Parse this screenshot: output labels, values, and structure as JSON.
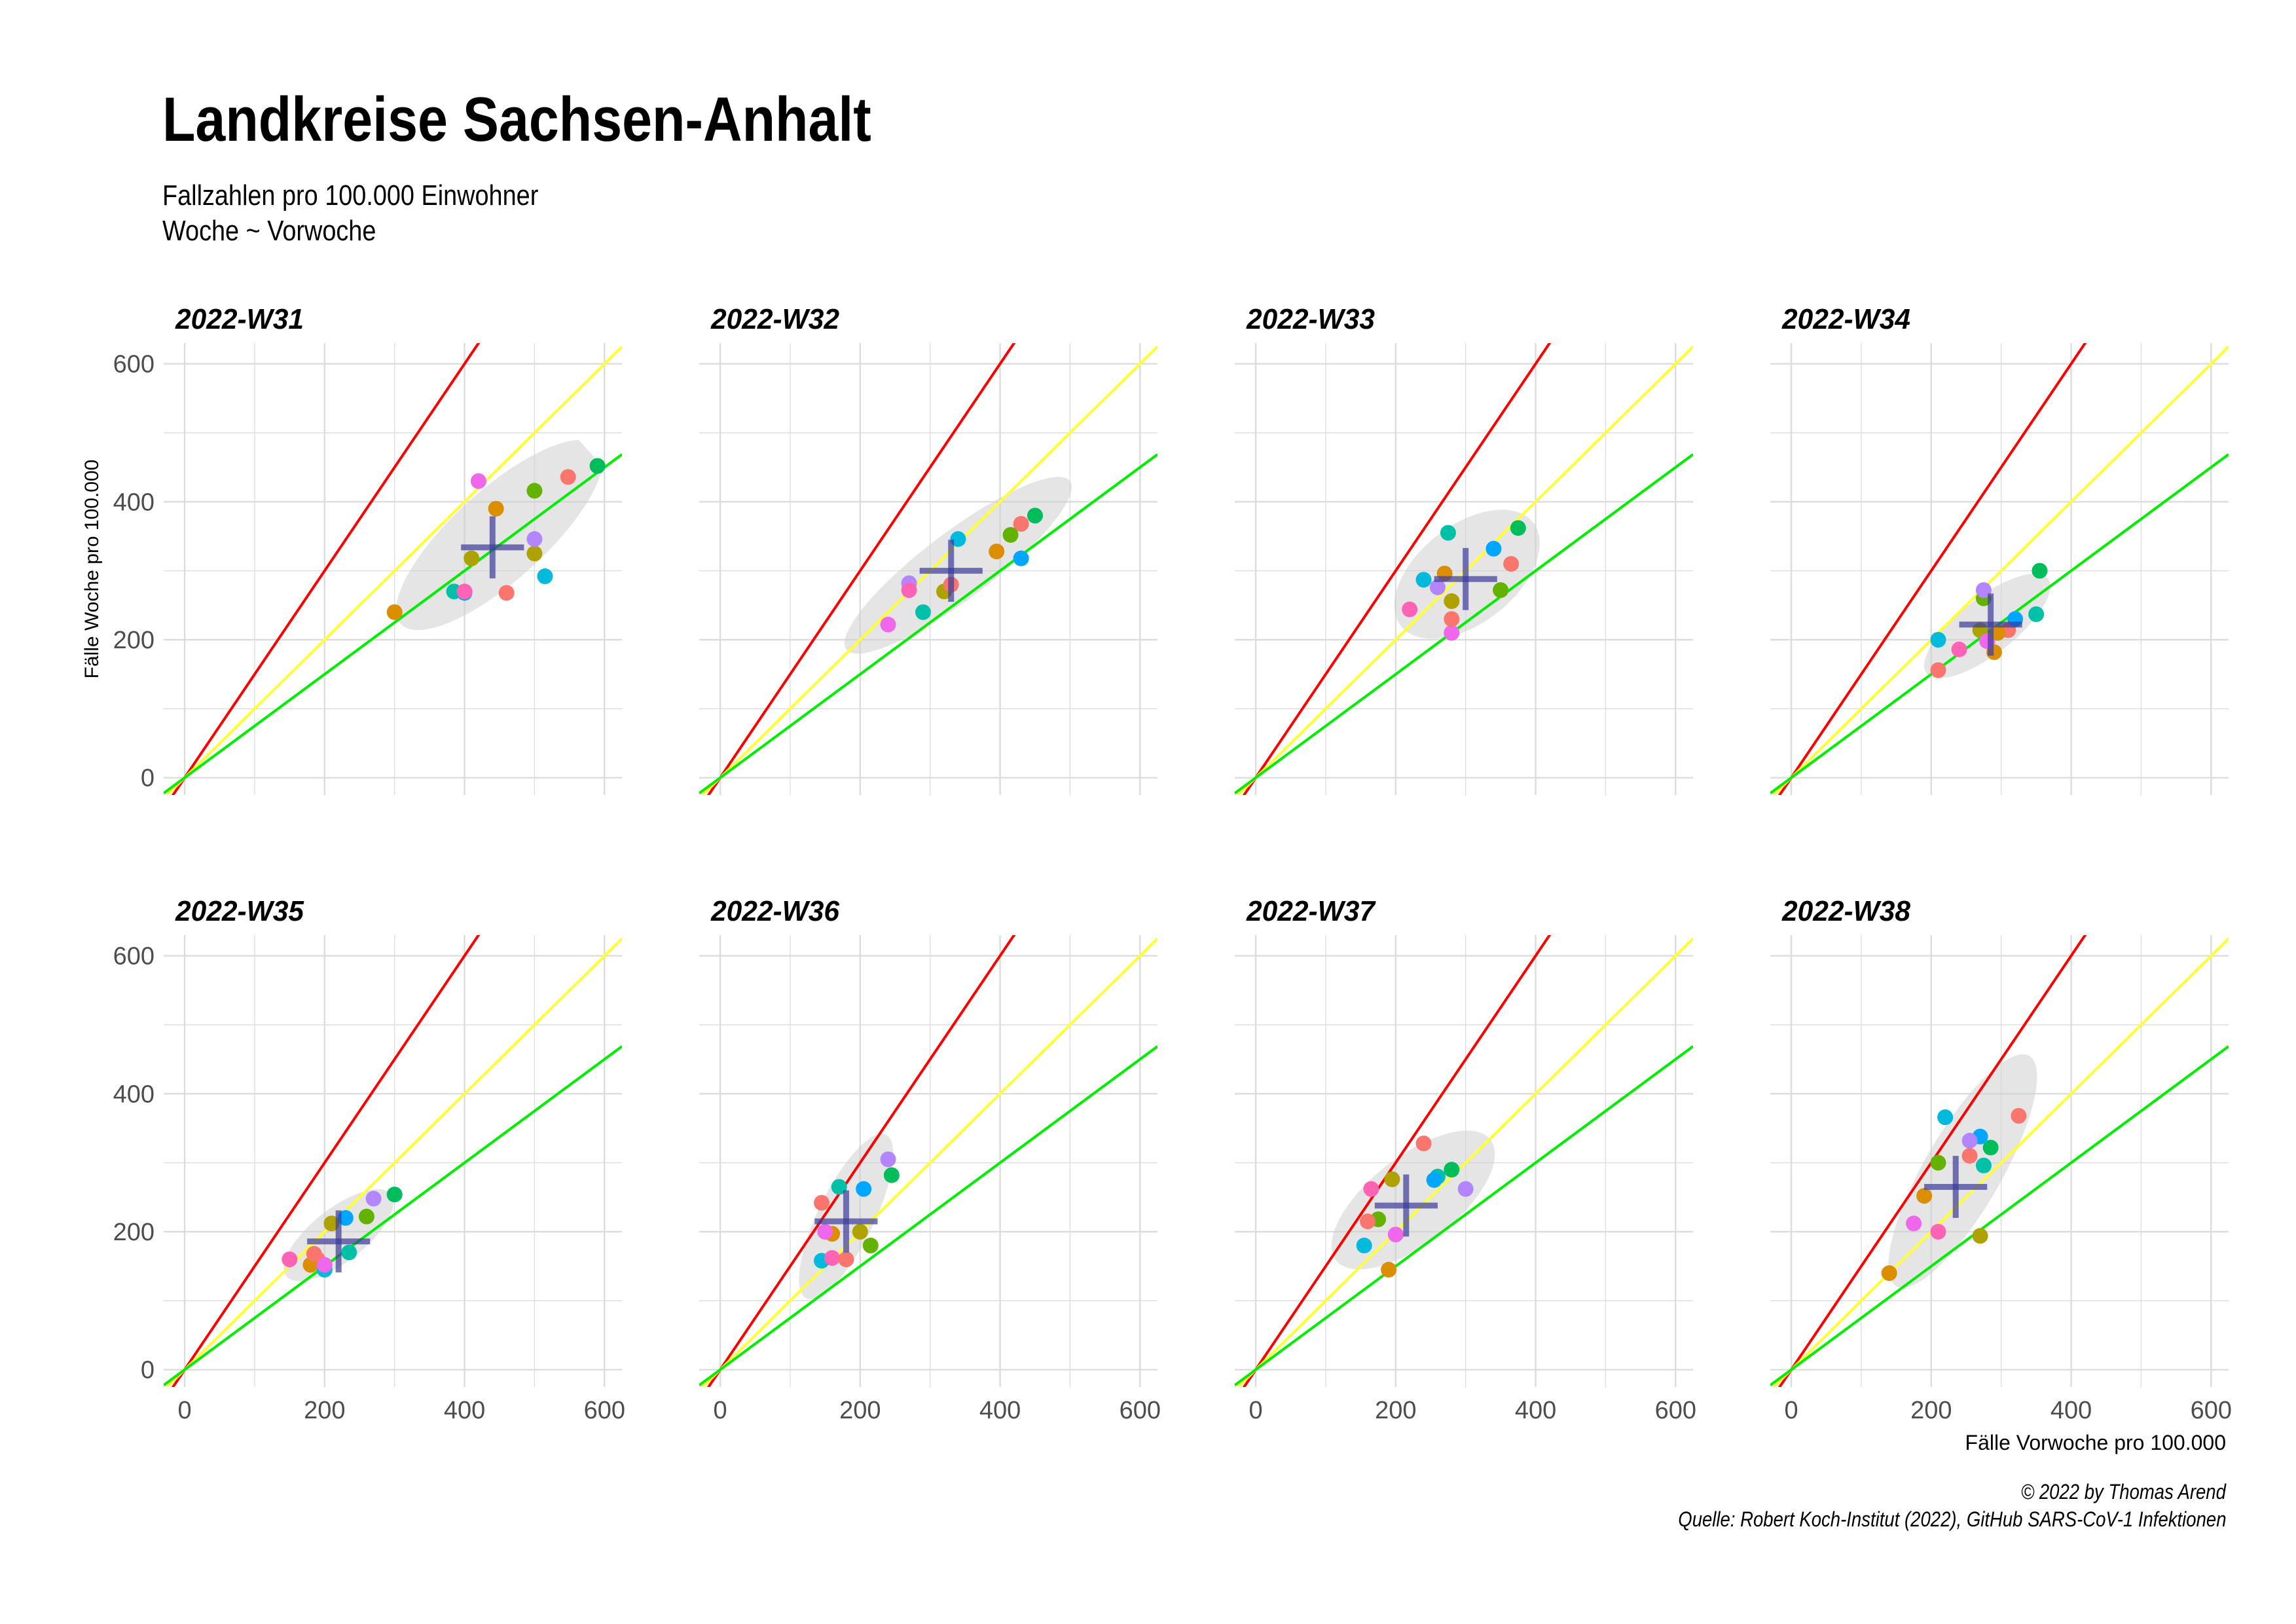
{
  "title": "Landkreise Sachsen-Anhalt",
  "subtitle_line1": "Fallzahlen pro 100.000 Einwohner",
  "subtitle_line2": "Woche ~ Vorwoche",
  "caption_line1": "© 2022 by Thomas Arend",
  "caption_line2": "Quelle: Robert Koch-Institut (2022), GitHub SARS-CoV-1 Infektionen",
  "colors": {
    "line_red": "#ff0000",
    "line_yellow": "#ffff33",
    "line_green": "#00ee00",
    "cross": "#3a3a9a",
    "ellipse": "#d0d0d0",
    "grid": "#dcdcdc",
    "points": [
      "#f8766d",
      "#db8e00",
      "#aea200",
      "#64b200",
      "#00bd5c",
      "#00c1a7",
      "#00bade",
      "#00a6ff",
      "#b385ff",
      "#ef67eb",
      "#ff63b6"
    ]
  },
  "chart_data": {
    "type": "scatter",
    "xlabel": "Fälle Vorwoche pro 100.000",
    "ylabel": "Fälle Woche pro 100.000",
    "xlim": [
      -30,
      625
    ],
    "ylim": [
      -25,
      630
    ],
    "xticks": [
      0,
      200,
      400,
      600
    ],
    "yticks": [
      0,
      200,
      400,
      600
    ],
    "tick_labels_x": [
      "0",
      "200",
      "400",
      "600"
    ],
    "tick_labels_y": [
      "0",
      "200",
      "400",
      "600"
    ],
    "reference_slopes": {
      "red": 1.5,
      "yellow": 1.0,
      "green": 0.75
    },
    "facets": [
      {
        "label": "2022-W31",
        "points": [
          [
            548,
            436
          ],
          [
            445,
            390
          ],
          [
            500,
            325
          ],
          [
            500,
            416
          ],
          [
            590,
            452
          ],
          [
            385,
            270
          ],
          [
            515,
            292
          ],
          [
            400,
            268
          ],
          [
            500,
            346
          ],
          [
            420,
            430
          ],
          [
            400,
            270
          ],
          [
            460,
            268
          ],
          [
            300,
            240
          ],
          [
            410,
            318
          ]
        ],
        "mean": [
          440,
          334
        ],
        "ellipse": {
          "cx": 450,
          "cy": 352,
          "rx": 190,
          "ry": 65,
          "angle": 42
        }
      },
      {
        "label": "2022-W32",
        "points": [
          [
            430,
            368
          ],
          [
            395,
            328
          ],
          [
            320,
            270
          ],
          [
            415,
            352
          ],
          [
            450,
            380
          ],
          [
            290,
            240
          ],
          [
            340,
            346
          ],
          [
            430,
            318
          ],
          [
            270,
            282
          ],
          [
            240,
            222
          ],
          [
            270,
            272
          ],
          [
            330,
            280
          ]
        ],
        "mean": [
          330,
          300
        ],
        "ellipse": {
          "cx": 340,
          "cy": 308,
          "rx": 200,
          "ry": 48,
          "angle": 37
        }
      },
      {
        "label": "2022-W33",
        "points": [
          [
            365,
            310
          ],
          [
            270,
            296
          ],
          [
            280,
            256
          ],
          [
            350,
            272
          ],
          [
            375,
            362
          ],
          [
            275,
            355
          ],
          [
            240,
            287
          ],
          [
            340,
            332
          ],
          [
            260,
            276
          ],
          [
            280,
            210
          ],
          [
            220,
            244
          ],
          [
            280,
            230
          ]
        ],
        "mean": [
          300,
          288
        ],
        "ellipse": {
          "cx": 302,
          "cy": 295,
          "rx": 120,
          "ry": 70,
          "angle": 38
        }
      },
      {
        "label": "2022-W34",
        "points": [
          [
            310,
            214
          ],
          [
            290,
            182
          ],
          [
            270,
            214
          ],
          [
            275,
            260
          ],
          [
            355,
            300
          ],
          [
            350,
            237
          ],
          [
            210,
            200
          ],
          [
            320,
            230
          ],
          [
            275,
            272
          ],
          [
            280,
            198
          ],
          [
            240,
            186
          ],
          [
            210,
            156
          ],
          [
            295,
            210
          ]
        ],
        "mean": [
          285,
          222
        ],
        "ellipse": {
          "cx": 280,
          "cy": 220,
          "rx": 110,
          "ry": 40,
          "angle": 38
        }
      },
      {
        "label": "2022-W35",
        "points": [
          [
            190,
            160
          ],
          [
            180,
            152
          ],
          [
            210,
            212
          ],
          [
            260,
            222
          ],
          [
            300,
            254
          ],
          [
            235,
            170
          ],
          [
            200,
            145
          ],
          [
            230,
            220
          ],
          [
            270,
            248
          ],
          [
            200,
            152
          ],
          [
            150,
            160
          ],
          [
            185,
            168
          ]
        ],
        "mean": [
          220,
          186
        ],
        "ellipse": {
          "cx": 220,
          "cy": 195,
          "rx": 95,
          "ry": 38,
          "angle": 38
        }
      },
      {
        "label": "2022-W36",
        "points": [
          [
            145,
            242
          ],
          [
            160,
            197
          ],
          [
            200,
            200
          ],
          [
            215,
            180
          ],
          [
            245,
            282
          ],
          [
            170,
            265
          ],
          [
            145,
            158
          ],
          [
            205,
            262
          ],
          [
            240,
            305
          ],
          [
            150,
            200
          ],
          [
            160,
            162
          ],
          [
            180,
            160
          ]
        ],
        "mean": [
          180,
          215
        ],
        "ellipse": {
          "cx": 180,
          "cy": 222,
          "rx": 130,
          "ry": 40,
          "angle": 64
        }
      },
      {
        "label": "2022-W37",
        "points": [
          [
            240,
            328
          ],
          [
            190,
            145
          ],
          [
            195,
            276
          ],
          [
            175,
            218
          ],
          [
            280,
            290
          ],
          [
            260,
            280
          ],
          [
            155,
            180
          ],
          [
            255,
            275
          ],
          [
            300,
            262
          ],
          [
            200,
            196
          ],
          [
            165,
            262
          ],
          [
            160,
            215
          ]
        ],
        "mean": [
          215,
          238
        ],
        "ellipse": {
          "cx": 225,
          "cy": 246,
          "rx": 140,
          "ry": 62,
          "angle": 38
        }
      },
      {
        "label": "2022-W38",
        "points": [
          [
            325,
            368
          ],
          [
            140,
            140
          ],
          [
            270,
            194
          ],
          [
            210,
            300
          ],
          [
            285,
            322
          ],
          [
            275,
            296
          ],
          [
            220,
            366
          ],
          [
            270,
            338
          ],
          [
            255,
            332
          ],
          [
            175,
            212
          ],
          [
            210,
            200
          ],
          [
            255,
            310
          ],
          [
            190,
            252
          ]
        ],
        "mean": [
          235,
          265
        ],
        "ellipse": {
          "cx": 245,
          "cy": 288,
          "rx": 190,
          "ry": 55,
          "angle": 60
        }
      }
    ]
  }
}
